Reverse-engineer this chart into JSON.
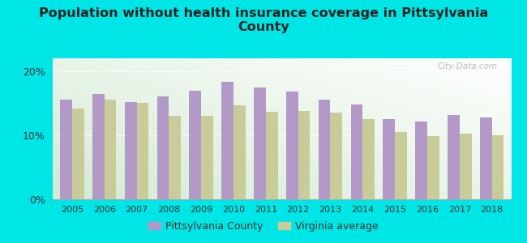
{
  "title": "Population without health insurance coverage in Pittsylvania\nCounty",
  "years": [
    2005,
    2006,
    2007,
    2008,
    2009,
    2010,
    2011,
    2012,
    2013,
    2014,
    2015,
    2016,
    2017,
    2018
  ],
  "pittsylvania": [
    15.5,
    16.5,
    15.2,
    16.0,
    17.0,
    18.3,
    17.4,
    16.8,
    15.5,
    14.8,
    12.5,
    12.2,
    13.2,
    12.8
  ],
  "virginia": [
    14.2,
    15.5,
    15.0,
    13.0,
    13.0,
    14.7,
    13.7,
    13.8,
    13.5,
    12.5,
    10.5,
    9.8,
    10.3,
    10.0
  ],
  "pittsylvania_color": "#b399c8",
  "virginia_color": "#c8cc99",
  "background_color": "#00e5e5",
  "plot_bg_top": "#e8f4e8",
  "plot_bg_bottom": "#d0ecd0",
  "ylim": [
    0,
    22
  ],
  "yticks": [
    0,
    10,
    20
  ],
  "ytick_labels": [
    "0%",
    "10%",
    "20%"
  ],
  "legend_pittsylvania": "Pittsylvania County",
  "legend_virginia": "Virginia average",
  "bar_width": 0.37
}
